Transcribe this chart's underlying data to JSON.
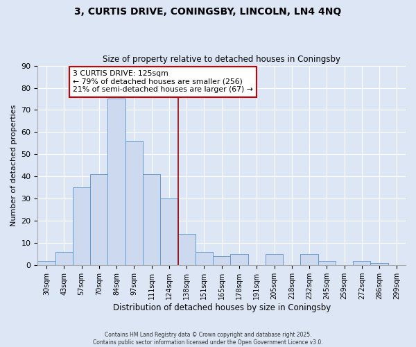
{
  "title": "3, CURTIS DRIVE, CONINGSBY, LINCOLN, LN4 4NQ",
  "subtitle": "Size of property relative to detached houses in Coningsby",
  "xlabel": "Distribution of detached houses by size in Coningsby",
  "ylabel": "Number of detached properties",
  "bar_labels": [
    "30sqm",
    "43sqm",
    "57sqm",
    "70sqm",
    "84sqm",
    "97sqm",
    "111sqm",
    "124sqm",
    "138sqm",
    "151sqm",
    "165sqm",
    "178sqm",
    "191sqm",
    "205sqm",
    "218sqm",
    "232sqm",
    "245sqm",
    "259sqm",
    "272sqm",
    "286sqm",
    "299sqm"
  ],
  "bar_values": [
    2,
    6,
    35,
    41,
    75,
    56,
    41,
    30,
    14,
    6,
    4,
    5,
    0,
    5,
    0,
    5,
    2,
    0,
    2,
    1,
    0
  ],
  "bar_color": "#ccd9ee",
  "bar_edge_color": "#6699cc",
  "vline_x": 7.5,
  "vline_color": "#990000",
  "annotation_title": "3 CURTIS DRIVE: 125sqm",
  "annotation_line1": "← 79% of detached houses are smaller (256)",
  "annotation_line2": "21% of semi-detached houses are larger (67) →",
  "annotation_box_facecolor": "#ffffff",
  "annotation_border_color": "#cc0000",
  "ylim": [
    0,
    90
  ],
  "yticks": [
    0,
    10,
    20,
    30,
    40,
    50,
    60,
    70,
    80,
    90
  ],
  "bg_color": "#dce6f5",
  "plot_bg_color": "#dce6f5",
  "grid_color": "#ffffff",
  "footer1": "Contains HM Land Registry data © Crown copyright and database right 2025.",
  "footer2": "Contains public sector information licensed under the Open Government Licence v3.0."
}
